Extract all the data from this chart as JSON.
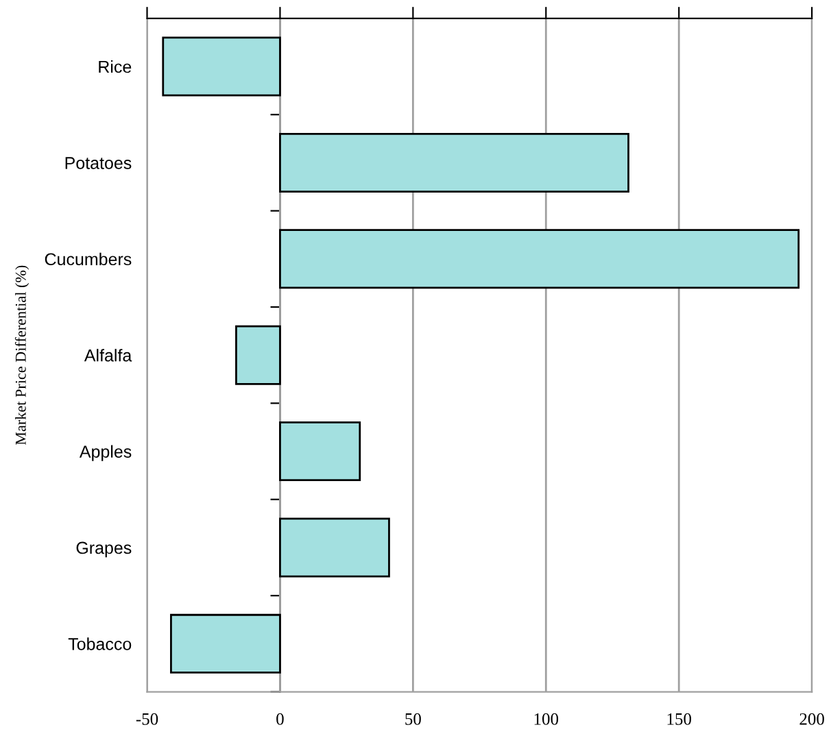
{
  "chart_data": {
    "type": "bar",
    "orientation": "horizontal",
    "ylabel": "Market Price Differential (%)",
    "categories": [
      "Rice",
      "Potatoes",
      "Cucumbers",
      "Alfalfa",
      "Apples",
      "Grapes",
      "Tobacco"
    ],
    "values": [
      -44,
      131,
      195,
      -16.5,
      30,
      41,
      -41
    ],
    "color": "#a3e0e0",
    "xlim": [
      -50,
      200
    ],
    "xticks": [
      -50,
      0,
      50,
      100,
      150,
      200
    ],
    "grid": "x",
    "legend": false
  }
}
